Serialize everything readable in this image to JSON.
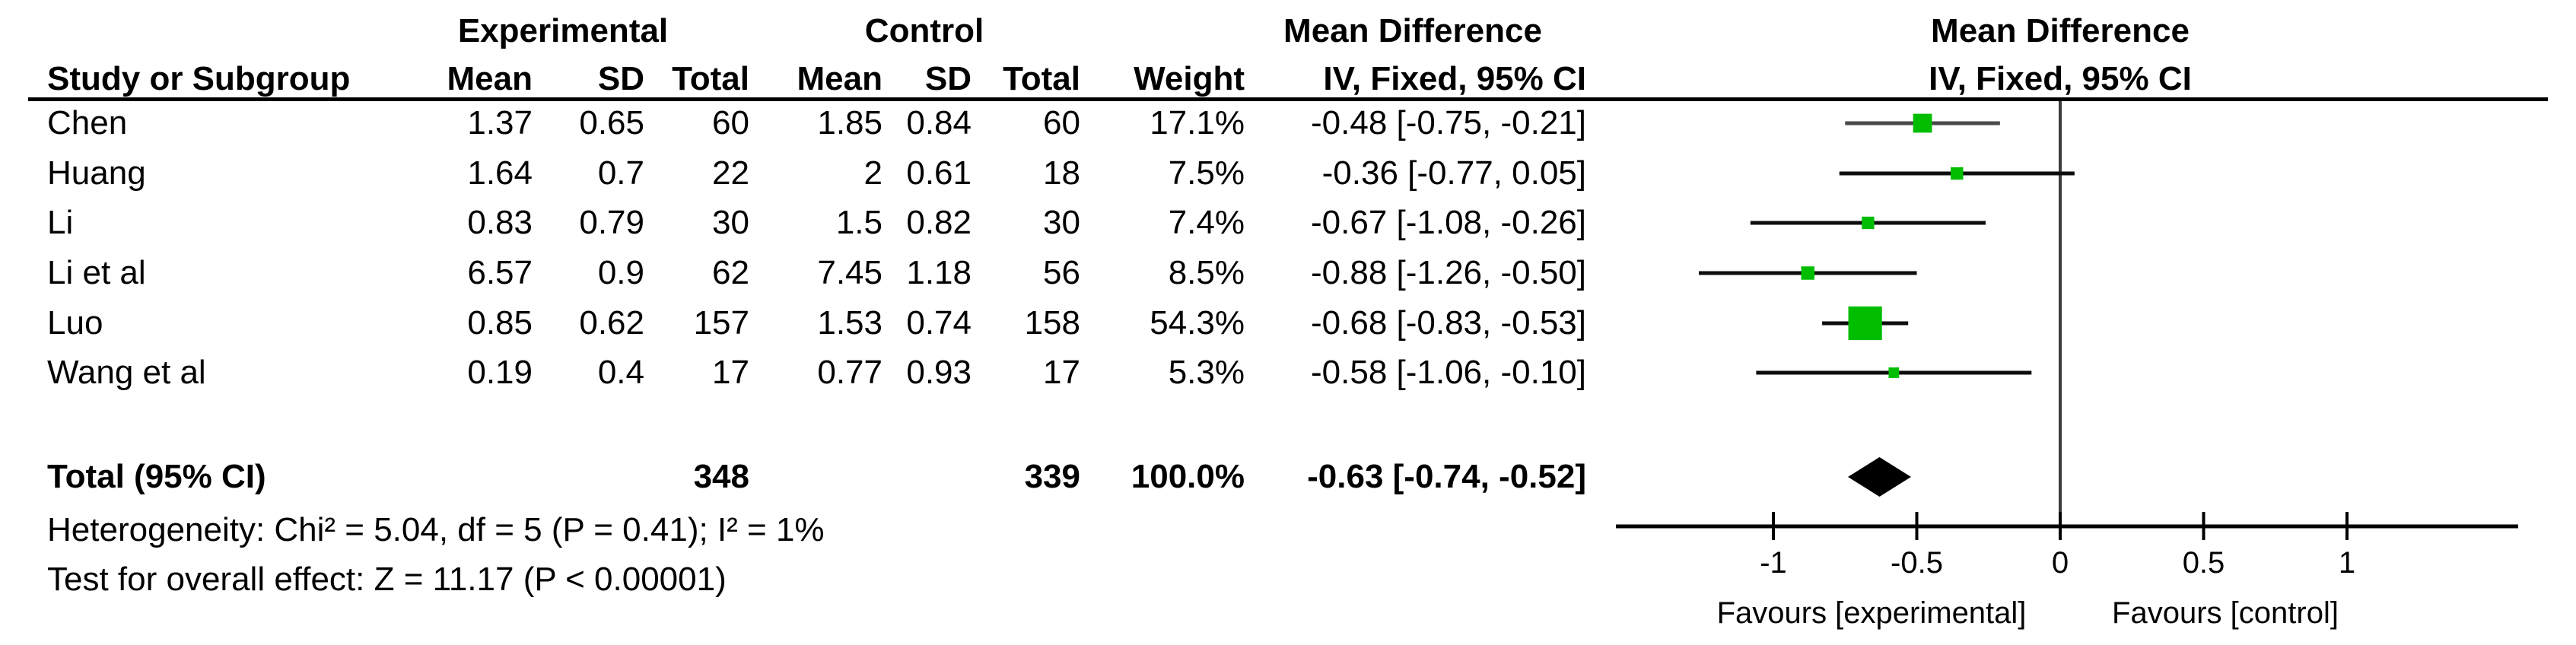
{
  "table": {
    "group_headers": {
      "experimental": "Experimental",
      "control": "Control",
      "md_left": "Mean Difference",
      "md_right": "Mean Difference"
    },
    "col_headers": {
      "study": "Study or Subgroup",
      "mean1": "Mean",
      "sd1": "SD",
      "total1": "Total",
      "mean2": "Mean",
      "sd2": "SD",
      "total2": "Total",
      "weight": "Weight",
      "ci_left": "IV, Fixed, 95% CI",
      "ci_right": "IV, Fixed, 95% CI"
    },
    "rows": [
      {
        "study": "Chen",
        "mean1": "1.37",
        "sd1": "0.65",
        "total1": "60",
        "mean2": "1.85",
        "sd2": "0.84",
        "total2": "60",
        "weight": "17.1%",
        "ci": "-0.48 [-0.75, -0.21]"
      },
      {
        "study": "Huang",
        "mean1": "1.64",
        "sd1": "0.7",
        "total1": "22",
        "mean2": "2",
        "sd2": "0.61",
        "total2": "18",
        "weight": "7.5%",
        "ci": "-0.36 [-0.77, 0.05]"
      },
      {
        "study": "Li",
        "mean1": "0.83",
        "sd1": "0.79",
        "total1": "30",
        "mean2": "1.5",
        "sd2": "0.82",
        "total2": "30",
        "weight": "7.4%",
        "ci": "-0.67 [-1.08, -0.26]"
      },
      {
        "study": "Li et al",
        "mean1": "6.57",
        "sd1": "0.9",
        "total1": "62",
        "mean2": "7.45",
        "sd2": "1.18",
        "total2": "56",
        "weight": "8.5%",
        "ci": "-0.88 [-1.26, -0.50]"
      },
      {
        "study": "Luo",
        "mean1": "0.85",
        "sd1": "0.62",
        "total1": "157",
        "mean2": "1.53",
        "sd2": "0.74",
        "total2": "158",
        "weight": "54.3%",
        "ci": "-0.68 [-0.83, -0.53]"
      },
      {
        "study": "Wang et al",
        "mean1": "0.19",
        "sd1": "0.4",
        "total1": "17",
        "mean2": "0.77",
        "sd2": "0.93",
        "total2": "17",
        "weight": "5.3%",
        "ci": "-0.58 [-1.06, -0.10]"
      }
    ],
    "total_row": {
      "label": "Total (95% CI)",
      "total1": "348",
      "total2": "339",
      "weight": "100.0%",
      "ci": "-0.63 [-0.74, -0.52]"
    },
    "footer": {
      "heterogeneity": "Heterogeneity: Chi² = 5.04, df = 5 (P = 0.41); I² = 1%",
      "overall_effect": "Test for overall effect: Z = 11.17 (P < 0.00001)"
    }
  },
  "chart_data": {
    "type": "forest",
    "effect_measure": "Mean Difference, IV, Fixed, 95% CI",
    "x_axis": {
      "ticks": [
        -1,
        -0.5,
        0,
        0.5,
        1
      ],
      "tick_labels": [
        "-1",
        "-0.5",
        "0",
        "0.5",
        "1"
      ],
      "zero_line": 0
    },
    "studies": [
      {
        "name": "Chen",
        "md": -0.48,
        "ci_low": -0.75,
        "ci_high": -0.21,
        "weight_pct": 17.1
      },
      {
        "name": "Huang",
        "md": -0.36,
        "ci_low": -0.77,
        "ci_high": 0.05,
        "weight_pct": 7.5
      },
      {
        "name": "Li",
        "md": -0.67,
        "ci_low": -1.08,
        "ci_high": -0.26,
        "weight_pct": 7.4
      },
      {
        "name": "Li et al",
        "md": -0.88,
        "ci_low": -1.26,
        "ci_high": -0.5,
        "weight_pct": 8.5
      },
      {
        "name": "Luo",
        "md": -0.68,
        "ci_low": -0.83,
        "ci_high": -0.53,
        "weight_pct": 54.3
      },
      {
        "name": "Wang et al",
        "md": -0.58,
        "ci_low": -1.06,
        "ci_high": -0.1,
        "weight_pct": 5.3
      }
    ],
    "total": {
      "md": -0.63,
      "ci_low": -0.74,
      "ci_high": -0.52,
      "weight_pct": 100.0
    },
    "favours_left": "Favours [experimental]",
    "favours_right": "Favours [control]",
    "marker_color": "#00bd00",
    "diamond_color": "#000000"
  }
}
